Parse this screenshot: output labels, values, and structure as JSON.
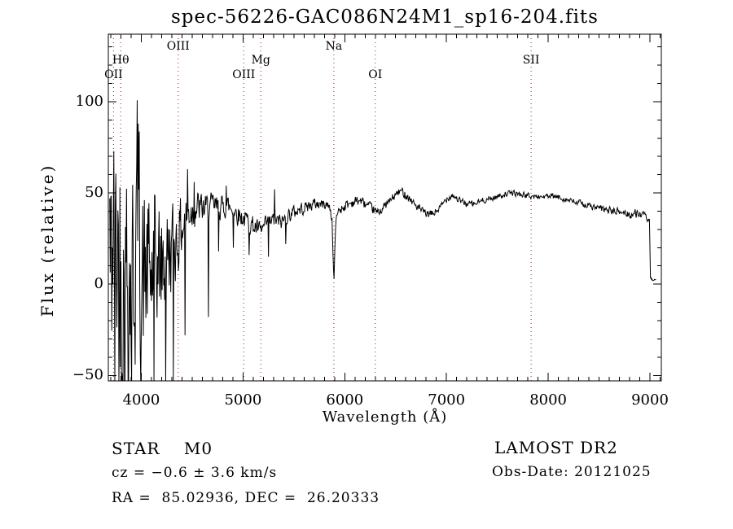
{
  "chart_data": {
    "type": "line",
    "title": "spec-56226-GAC086N24M1_sp16-204.fits",
    "xlabel": "Wavelength (Å)",
    "ylabel": "Flux (relative)",
    "xlim": [
      3676,
      9112
    ],
    "ylim": [
      -53,
      137
    ],
    "xticks": [
      4000,
      5000,
      6000,
      7000,
      8000,
      9000
    ],
    "yticks": [
      -50,
      0,
      50,
      100
    ],
    "x_minor_step": 100,
    "y_minor_step": 10,
    "grid": false,
    "legend": null,
    "colors": {
      "line": "#000000",
      "marker_line": "#8b2323",
      "background": "#ffffff",
      "frame": "#000000"
    },
    "line_markers": [
      {
        "label": "OII",
        "wavelength": 3727,
        "row": "bottom"
      },
      {
        "label": "Hθ",
        "wavelength": 3798,
        "row": "mid"
      },
      {
        "label": "OIII",
        "wavelength": 4363,
        "row": "top"
      },
      {
        "label": "OIII",
        "wavelength": 5007,
        "row": "bottom"
      },
      {
        "label": "Mg",
        "wavelength": 5175,
        "row": "mid"
      },
      {
        "label": "Na",
        "wavelength": 5893,
        "row": "top"
      },
      {
        "label": "OI",
        "wavelength": 6300,
        "row": "bottom"
      },
      {
        "label": "SII",
        "wavelength": 7832,
        "row": "mid"
      }
    ],
    "spectrum": {
      "domain": [
        3690,
        9060
      ],
      "sample_step_angstrom": 5,
      "noise_seed": 42,
      "continuum": [
        [
          3690,
          30
        ],
        [
          3700,
          -10
        ],
        [
          3720,
          40
        ],
        [
          3740,
          -20
        ],
        [
          3760,
          30
        ],
        [
          3780,
          0
        ],
        [
          3800,
          15
        ],
        [
          3830,
          -5
        ],
        [
          3860,
          10
        ],
        [
          3900,
          0
        ],
        [
          3940,
          15
        ],
        [
          3970,
          60
        ],
        [
          3990,
          10
        ],
        [
          4020,
          0
        ],
        [
          4060,
          8
        ],
        [
          4100,
          3
        ],
        [
          4150,
          12
        ],
        [
          4200,
          8
        ],
        [
          4250,
          15
        ],
        [
          4300,
          20
        ],
        [
          4360,
          26
        ],
        [
          4420,
          34
        ],
        [
          4480,
          40
        ],
        [
          4550,
          42
        ],
        [
          4620,
          41
        ],
        [
          4700,
          43
        ],
        [
          4780,
          42
        ],
        [
          4850,
          43
        ],
        [
          4920,
          40
        ],
        [
          4980,
          37
        ],
        [
          5040,
          35
        ],
        [
          5100,
          32
        ],
        [
          5175,
          29
        ],
        [
          5230,
          33
        ],
        [
          5300,
          35
        ],
        [
          5380,
          34
        ],
        [
          5450,
          38
        ],
        [
          5520,
          40
        ],
        [
          5600,
          42
        ],
        [
          5700,
          44
        ],
        [
          5780,
          44
        ],
        [
          5850,
          43
        ],
        [
          5875,
          35
        ],
        [
          5887,
          12
        ],
        [
          5893,
          3
        ],
        [
          5899,
          12
        ],
        [
          5910,
          32
        ],
        [
          5930,
          40
        ],
        [
          6000,
          43
        ],
        [
          6080,
          45
        ],
        [
          6150,
          46
        ],
        [
          6220,
          43
        ],
        [
          6280,
          41
        ],
        [
          6320,
          39
        ],
        [
          6380,
          42
        ],
        [
          6450,
          46
        ],
        [
          6520,
          50
        ],
        [
          6560,
          51
        ],
        [
          6620,
          48
        ],
        [
          6700,
          43
        ],
        [
          6760,
          40
        ],
        [
          6820,
          38
        ],
        [
          6880,
          39
        ],
        [
          6940,
          42
        ],
        [
          7000,
          47
        ],
        [
          7060,
          49
        ],
        [
          7120,
          46
        ],
        [
          7200,
          44
        ],
        [
          7280,
          44
        ],
        [
          7360,
          46
        ],
        [
          7450,
          47
        ],
        [
          7550,
          49
        ],
        [
          7650,
          50
        ],
        [
          7750,
          49
        ],
        [
          7850,
          48
        ],
        [
          7950,
          48
        ],
        [
          8050,
          48
        ],
        [
          8150,
          47
        ],
        [
          8250,
          45
        ],
        [
          8350,
          44
        ],
        [
          8450,
          42
        ],
        [
          8550,
          41
        ],
        [
          8650,
          40
        ],
        [
          8750,
          39
        ],
        [
          8820,
          38
        ],
        [
          8880,
          39
        ],
        [
          8930,
          38
        ],
        [
          8970,
          36
        ],
        [
          8995,
          35
        ],
        [
          9005,
          3
        ],
        [
          9040,
          2
        ],
        [
          9060,
          2
        ]
      ],
      "noise_amplitude": [
        [
          3690,
          120
        ],
        [
          3780,
          115
        ],
        [
          3850,
          100
        ],
        [
          3920,
          85
        ],
        [
          3990,
          75
        ],
        [
          4060,
          60
        ],
        [
          4130,
          50
        ],
        [
          4200,
          42
        ],
        [
          4280,
          34
        ],
        [
          4360,
          26
        ],
        [
          4440,
          18
        ],
        [
          4520,
          13
        ],
        [
          4600,
          11
        ],
        [
          4700,
          9
        ],
        [
          4800,
          8
        ],
        [
          4900,
          8
        ],
        [
          5000,
          7
        ],
        [
          5100,
          7
        ],
        [
          5200,
          6
        ],
        [
          5300,
          6
        ],
        [
          5450,
          5
        ],
        [
          5600,
          4.5
        ],
        [
          5750,
          4
        ],
        [
          5860,
          3
        ],
        [
          5893,
          1.5
        ],
        [
          5930,
          3.5
        ],
        [
          6000,
          4
        ],
        [
          6150,
          3.5
        ],
        [
          6300,
          3.2
        ],
        [
          6450,
          3
        ],
        [
          6600,
          3
        ],
        [
          6800,
          2.8
        ],
        [
          7000,
          2.5
        ],
        [
          7200,
          2.3
        ],
        [
          7400,
          2.1
        ],
        [
          7600,
          2
        ],
        [
          7800,
          2
        ],
        [
          8000,
          2
        ],
        [
          8200,
          2.2
        ],
        [
          8400,
          2.4
        ],
        [
          8600,
          2.6
        ],
        [
          8800,
          3
        ],
        [
          8950,
          3
        ],
        [
          9000,
          1
        ],
        [
          9060,
          0.8
        ]
      ],
      "spikes": [
        [
          3835,
          -82
        ],
        [
          3905,
          -75
        ],
        [
          3970,
          88
        ],
        [
          4125,
          -72
        ],
        [
          4240,
          -62
        ],
        [
          4315,
          -56
        ],
        [
          4430,
          -28
        ],
        [
          4455,
          63
        ],
        [
          4520,
          56
        ],
        [
          4660,
          -18
        ],
        [
          4760,
          18
        ],
        [
          4835,
          54
        ],
        [
          4905,
          20
        ],
        [
          5060,
          16
        ],
        [
          5250,
          15
        ],
        [
          5310,
          52
        ],
        [
          5420,
          22
        ],
        [
          5893,
          3
        ]
      ]
    }
  },
  "footer": {
    "class_line": "STAR    M0",
    "cz_line": "cz = −0.6 ± 3.6 km/s",
    "radec_line": "RA =  85.02936, DEC =  26.20333",
    "survey": "LAMOST DR2",
    "obsdate_line": "Obs-Date: 20121025"
  }
}
